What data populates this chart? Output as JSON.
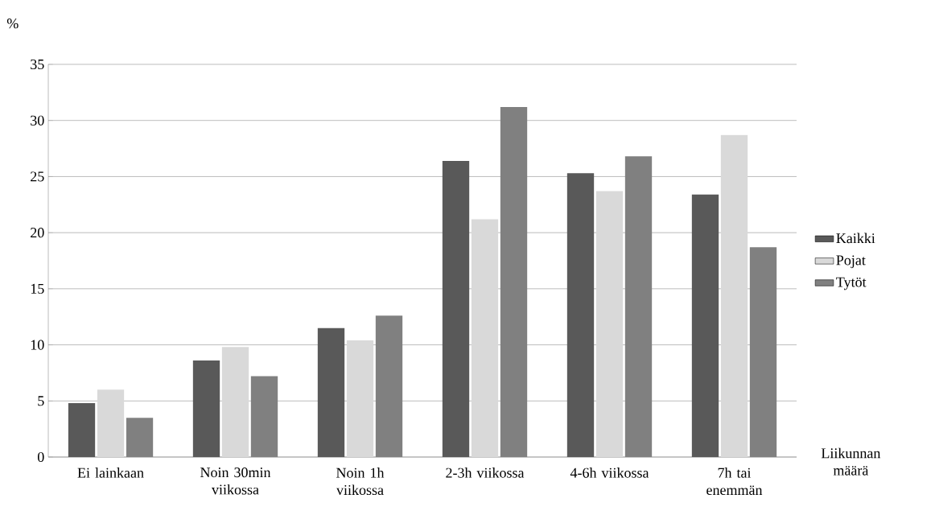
{
  "chart_data": {
    "type": "bar",
    "ylabel": "%",
    "xlabel": "Liikunnan määrä",
    "categories": [
      "Ei lainkaan",
      "Noin 30min viikossa",
      "Noin 1h viikossa",
      "2-3h viikossa",
      "4-6h viikossa",
      "7h tai enemmän"
    ],
    "series": [
      {
        "name": "Kaikki",
        "color": "#595959",
        "values": [
          4.8,
          8.6,
          11.5,
          26.4,
          25.3,
          23.4
        ]
      },
      {
        "name": "Pojat",
        "color": "#d9d9d9",
        "values": [
          6.0,
          9.8,
          10.4,
          21.2,
          23.7,
          28.7
        ]
      },
      {
        "name": "Tytöt",
        "color": "#808080",
        "values": [
          3.5,
          7.2,
          12.6,
          31.2,
          26.8,
          18.7
        ]
      }
    ],
    "ylim": [
      0,
      35
    ],
    "yticks": [
      0,
      5,
      10,
      15,
      20,
      25,
      30,
      35
    ],
    "grid": "y",
    "legend": "right"
  }
}
